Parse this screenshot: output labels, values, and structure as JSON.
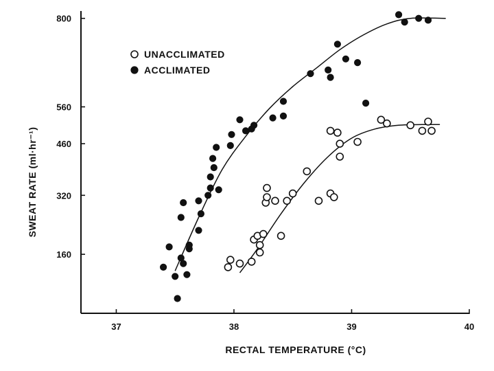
{
  "chart_data": {
    "type": "scatter",
    "title": "",
    "xlabel": "RECTAL TEMPERATURE (°C)",
    "ylabel": "SWEAT RATE (ml·hr⁻¹)",
    "xlim": [
      36.7,
      40
    ],
    "ylim": [
      0,
      820
    ],
    "xticks": [
      37,
      38,
      39,
      40
    ],
    "yticks": [
      160,
      320,
      460,
      560,
      800
    ],
    "grid": false,
    "legend": "top-left",
    "series": [
      {
        "name": "UNACCLIMATED",
        "marker": "open-circle",
        "points": [
          [
            37.95,
            125
          ],
          [
            37.97,
            145
          ],
          [
            38.05,
            135
          ],
          [
            38.15,
            140
          ],
          [
            38.17,
            200
          ],
          [
            38.2,
            210
          ],
          [
            38.22,
            185
          ],
          [
            38.22,
            165
          ],
          [
            38.25,
            215
          ],
          [
            38.27,
            300
          ],
          [
            38.28,
            315
          ],
          [
            38.28,
            340
          ],
          [
            38.35,
            305
          ],
          [
            38.4,
            210
          ],
          [
            38.45,
            305
          ],
          [
            38.5,
            325
          ],
          [
            38.62,
            385
          ],
          [
            38.72,
            305
          ],
          [
            38.82,
            325
          ],
          [
            38.82,
            495
          ],
          [
            38.85,
            315
          ],
          [
            38.88,
            490
          ],
          [
            38.9,
            460
          ],
          [
            38.9,
            425
          ],
          [
            39.05,
            465
          ],
          [
            39.25,
            525
          ],
          [
            39.3,
            515
          ],
          [
            39.5,
            510
          ],
          [
            39.6,
            495
          ],
          [
            39.65,
            520
          ],
          [
            39.68,
            495
          ]
        ],
        "fit": [
          [
            38.05,
            110
          ],
          [
            38.2,
            175
          ],
          [
            38.4,
            270
          ],
          [
            38.6,
            355
          ],
          [
            38.8,
            425
          ],
          [
            39.0,
            475
          ],
          [
            39.2,
            500
          ],
          [
            39.4,
            510
          ],
          [
            39.6,
            512
          ],
          [
            39.75,
            512
          ]
        ]
      },
      {
        "name": "ACCLIMATED",
        "marker": "filled-circle",
        "points": [
          [
            37.4,
            125
          ],
          [
            37.45,
            180
          ],
          [
            37.5,
            100
          ],
          [
            37.52,
            40
          ],
          [
            37.55,
            260
          ],
          [
            37.55,
            150
          ],
          [
            37.57,
            300
          ],
          [
            37.57,
            135
          ],
          [
            37.6,
            105
          ],
          [
            37.62,
            175
          ],
          [
            37.62,
            185
          ],
          [
            37.7,
            305
          ],
          [
            37.7,
            225
          ],
          [
            37.72,
            270
          ],
          [
            37.78,
            320
          ],
          [
            37.8,
            340
          ],
          [
            37.8,
            370
          ],
          [
            37.82,
            420
          ],
          [
            37.83,
            395
          ],
          [
            37.85,
            450
          ],
          [
            37.87,
            335
          ],
          [
            37.97,
            455
          ],
          [
            37.98,
            485
          ],
          [
            38.05,
            525
          ],
          [
            38.1,
            495
          ],
          [
            38.15,
            500
          ],
          [
            38.17,
            510
          ],
          [
            38.33,
            530
          ],
          [
            38.42,
            575
          ],
          [
            38.42,
            535
          ],
          [
            38.65,
            650
          ],
          [
            38.8,
            660
          ],
          [
            38.82,
            640
          ],
          [
            38.88,
            730
          ],
          [
            38.95,
            690
          ],
          [
            39.05,
            680
          ],
          [
            39.12,
            570
          ],
          [
            39.4,
            810
          ],
          [
            39.45,
            790
          ],
          [
            39.57,
            800
          ],
          [
            39.65,
            795
          ]
        ],
        "fit": [
          [
            37.5,
            115
          ],
          [
            37.7,
            260
          ],
          [
            37.9,
            390
          ],
          [
            38.1,
            480
          ],
          [
            38.3,
            555
          ],
          [
            38.5,
            615
          ],
          [
            38.7,
            665
          ],
          [
            38.9,
            715
          ],
          [
            39.1,
            755
          ],
          [
            39.3,
            785
          ],
          [
            39.5,
            800
          ],
          [
            39.8,
            800
          ]
        ]
      }
    ]
  },
  "legend": {
    "unacclimated_label": "UNACCLIMATED",
    "acclimated_label": "ACCLIMATED"
  }
}
